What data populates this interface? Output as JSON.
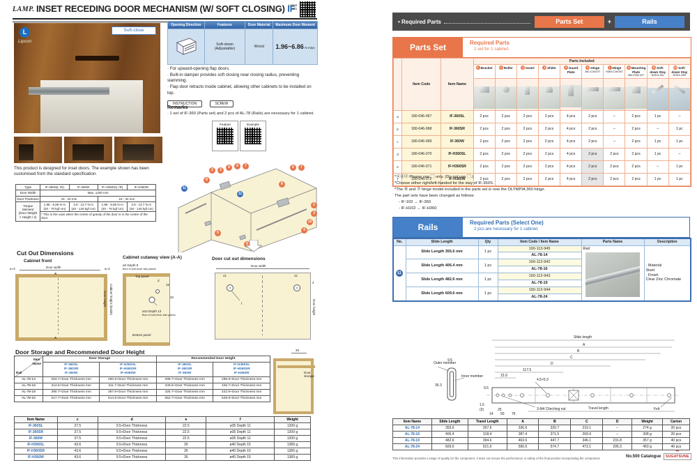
{
  "header": {
    "brand": "LAMP.",
    "title": "INSET RECEDING DOOR MECHANISM (W/ SOFT CLOSING)",
    "model": "IF",
    "latest1": "Latest",
    "latest2": "Info"
  },
  "photo": {
    "logo_letter": "L",
    "logo": "Lipcon",
    "badge": "Soft-close"
  },
  "spec_table": {
    "headers": [
      "Opening Direction",
      "Features",
      "Door Material",
      "Maximum Door Moment"
    ],
    "feature": "Soft-down\n(Adjustable)",
    "material": "Wood",
    "moment": "1.96~6.86",
    "moment_unit": "N·m/pc"
  },
  "bullets": [
    "· For upward-opening flap doors.",
    "· Built-in damper provides soft closing near closing radius, preventing slamming.",
    "· Flap door retracts inside cabinet, allowing other cabinets to be installed on top."
  ],
  "instruction_btn": "INSTRUCTION",
  "screw_btn": "SCREW",
  "remarks_title": "Remarks",
  "remarks_text": "· 1 set of IF-360 (Parts set) and 2 pcs of AL-78 (Rails) are necessary for 1 cabinet.",
  "qr_feature": "Feature",
  "qr_example": "Example",
  "caption": "This product is designed for inset doors. The example shown has been customised from the standard specification.",
  "type_table": {
    "col_type": "Type",
    "cols": [
      "IF-360S(L /R)",
      "IF-360W",
      "IF-H360S(L /R)",
      "IF-H360W"
    ],
    "row_width": "Door Width",
    "width_value": "Max. 1200 mm",
    "row_thickness": "Door Thickness",
    "thickness_1": "15 - 20 mm",
    "thickness_2": "18 - 30 mm",
    "row_torque": "Torque\nMoment\n(Door Weight\n× Height / 2)",
    "torque": [
      "1.96 - 6.86 N·m\n(20 - 70 kgf·cm)",
      "3.9 - 13.7 N·m\n(40 - 140 kgf·cm)",
      "1.96 - 6.86 N·m\n(20 - 70 kgf·cm)",
      "3.9 - 13.7 N·m\n(40 - 140 kgf·cm)"
    ],
    "note": "* This is the case when the centre of gravity of the door is in the centre of the door."
  },
  "exploded": {
    "markers": [
      "2",
      "3",
      "9",
      "6",
      "7",
      "8",
      "11",
      "11",
      "6",
      "7",
      "8",
      "2",
      "3",
      "10",
      "4",
      "5",
      "5"
    ]
  },
  "cutout": {
    "title": "Cut Out Dimensions",
    "front_title": "Cabinet front",
    "front": {
      "width": "Door width",
      "a_left": "a=3",
      "a_right": "a=3",
      "A_top": "A",
      "A_bottom": "A",
      "height": "Door height",
      "cab_height": "Cabinet height (inside)"
    },
    "cutaway_title": "Cabinet cutaway view (A-A)",
    "cutaway": {
      "hole_top": "ø2 Depth 8",
      "bore_top": "Bore to both inner side panels",
      "top_panel": "Top panel",
      "bottom_panel": "Bottom panel",
      "d": "d",
      "dim15": "15",
      "dim20": "20",
      "hole_bottom": "ø10 Depth 13",
      "bore_bottom": "Bore to both inner side panels"
    },
    "door_title": "Door cut out dimensions",
    "door": {
      "width": "Door width",
      "d41_left": "41",
      "d41_right": "41",
      "d4": "4",
      "f": "f",
      "height": "Door height"
    }
  },
  "storage": {
    "title": "Door Storage and Recommended Door Height",
    "corner_top": "Item\nName",
    "corner_bottom": "Rail",
    "groups": [
      "Door Storage",
      "Recommended Door Height"
    ],
    "subcols": [
      "IF-360SL\nIF-360SR\nIF-360W",
      "IF-H360SL\nIF-H360SR\nIF-H360W",
      "IF-360SL\nIF-360SR\nIF-360W",
      "IF-H360SL\nIF-H360SR\nIF-H360W"
    ],
    "rows": [
      [
        "AL-78-14",
        "263.7+Door Thickness mm",
        "260.9+Door Thickness mm",
        "298.7+Door Thickness mm",
        "295.9+Door Thickness mm"
      ],
      [
        "AL-78-16",
        "314.5+Door Thickness mm",
        "311.7+Door Thickness mm",
        "349.5+Door Thickness mm",
        "346.7+Door Thickness mm"
      ],
      [
        "AL-78-19",
        "390.7+Door Thickness mm",
        "387.9+Door Thickness mm",
        "425.7+Door Thickness mm",
        "422.9+Door Thickness mm"
      ],
      [
        "AL-78-24",
        "517.7+Door Thickness mm",
        "514.9+Door Thickness mm",
        "552.7+Door Thickness mm",
        "549.9+Door Thickness mm"
      ]
    ],
    "diagram_dim": "35",
    "diagram_label": "Door storage"
  },
  "dims_table": {
    "rows": [
      [
        "Item Name",
        "c",
        "d",
        "e",
        "f",
        "Weight"
      ],
      [
        "IF-360SL",
        "37.5",
        "9.5+Door Thickness",
        "22.5",
        "ø35 Depth 11",
        "1200 g"
      ],
      [
        "IF-360SR",
        "37.5",
        "9.5+Door Thickness",
        "22.5",
        "ø35 Depth 11",
        "1200 g"
      ],
      [
        "IF-360W",
        "37.5",
        "9.5+Door Thickness",
        "22.5",
        "ø35 Depth 11",
        "1200 g"
      ],
      [
        "IF-H360SL",
        "43.6",
        "9.5+Door Thickness",
        "26",
        "ø40 Depth 15",
        "1365 g"
      ],
      [
        "IF-H360SR",
        "43.6",
        "9.5+Door Thickness",
        "26",
        "ø40 Depth 15",
        "1365 g"
      ],
      [
        "IF-H360W",
        "43.6",
        "9.5+Door Thickness",
        "26",
        "ø40 Depth 15",
        "1365 g"
      ]
    ]
  },
  "required_bar": {
    "label": "• Required Parts",
    "parts_btn": "Parts Set",
    "plus": "+",
    "rails_btn": "Rails"
  },
  "parts_set": {
    "tab": "Parts Set",
    "heading": "Required Parts",
    "sub": "1 set for 1 cabinet.",
    "col_item_code": "Item Code",
    "col_item_name": "Item Name",
    "col_parts_included": "Parts Included",
    "cols": [
      {
        "n": "1",
        "name": "Bracket",
        "sub": ""
      },
      {
        "n": "2",
        "name": "Roller",
        "sub": ""
      },
      {
        "n": "3",
        "name": "Insert",
        "sub": ""
      },
      {
        "n": "4",
        "name": "Slider",
        "sub": ""
      },
      {
        "n": "5",
        "name": "Guard Plate",
        "sub": ""
      },
      {
        "n": "6",
        "name": "Hinge",
        "sub": "360-C26/19T"
      },
      {
        "n": "7",
        "name": "Hinge",
        "sub": "H360-C26/26T"
      },
      {
        "n": "8",
        "name": "Mounting Plate",
        "sub": "360-P4W-32T"
      },
      {
        "n": "9",
        "name": "Soft-down Stay",
        "sub": "NSDX-35L"
      },
      {
        "n": "10",
        "name": "Soft-down Stay",
        "sub": "NSDX-35R"
      }
    ],
    "rows": [
      [
        "a",
        "180-046-067",
        "IF-360SL",
        "2 pcs",
        "2 pcs",
        "2 pcs",
        "2 pcs",
        "4 pcs",
        "2 pcs",
        "–",
        "2 pcs",
        "1 pc",
        "–"
      ],
      [
        "b",
        "180-046-068",
        "IF-360SR",
        "2 pcs",
        "2 pcs",
        "2 pcs",
        "2 pcs",
        "4 pcs",
        "2 pcs",
        "–",
        "2 pcs",
        "–",
        "1 pc"
      ],
      [
        "c",
        "180-046-069",
        "IF-360W",
        "2 pcs",
        "2 pcs",
        "2 pcs",
        "2 pcs",
        "4 pcs",
        "2 pcs",
        "–",
        "2 pcs",
        "1 pc",
        "1 pc"
      ],
      [
        "d",
        "180-046-070",
        "IF-H360SL",
        "2 pcs",
        "2 pcs",
        "2 pcs",
        "2 pcs",
        "4 pcs",
        "2 pcs",
        "2 pcs",
        "2 pcs",
        "1 pc",
        "–"
      ],
      [
        "e",
        "180-046-071",
        "IF-H360SR",
        "2 pcs",
        "2 pcs",
        "2 pcs",
        "2 pcs",
        "4 pcs",
        "2 pcs",
        "2 pcs",
        "2 pcs",
        "–",
        "1 pc"
      ],
      [
        "f",
        "180-046-072",
        "IF-H360W",
        "2 pcs",
        "2 pcs",
        "2 pcs",
        "2 pcs",
        "4 pcs",
        "2 pcs",
        "2 pcs",
        "2 pcs",
        "1 pc",
        "1 pc"
      ]
    ],
    "notes": [
      "*ⓐⓓⓔ Please use ▢ only. (Do not use ▢.)",
      "*Choose either right/left-handed for the stay of IF-360S.",
      "*The ⑥ and ⑦ hinge model included in the parts set is now the OLYMPIA 360 hinge.",
      "The part sets have been changed as follows:",
      "- IF-102 → IF-360",
      "- IF-H102 → IF-H360"
    ]
  },
  "rails": {
    "tab": "Rails",
    "heading": "Required Parts (Select One)",
    "sub": "2 pcs are necessary for 1 cabinet.",
    "headers": [
      "No.",
      "Slide Length",
      "Qty",
      "Item Code / Item Name",
      "Parts Name",
      "Description"
    ],
    "marker": "11",
    "parts_name": "Rail",
    "rows": [
      {
        "len": "Slide Length 355.6 mm",
        "qty": "1 pc",
        "code": "190-113-945",
        "name": "AL-78-14"
      },
      {
        "len": "Slide Length 406.4 mm",
        "qty": "1 pc",
        "code": "190-113-942",
        "name": "AL-78-16"
      },
      {
        "len": "Slide Length 482.6 mm",
        "qty": "1 pc",
        "code": "190-113-943",
        "name": "AL-78-19"
      },
      {
        "len": "Slide Length 609.6 mm",
        "qty": "1 pc",
        "code": "190-113-944",
        "name": "AL-78-24"
      }
    ],
    "description": "· Material\nSteel\n· Finish\nClear Zinc Chromate"
  },
  "drawing": {
    "outer": "Outer member",
    "inner": "Inner member",
    "d95a": "9.5",
    "d353": "35.3",
    "d95b": "9.5",
    "slide": "Slide length",
    "A": "A",
    "B": "B",
    "C": "C",
    "D": "D",
    "d1175": "117.5",
    "d159": "15.9",
    "hole": "4.5×5.3",
    "d16": "1.6",
    "d3": "(3)",
    "d25": "25",
    "d14": "14",
    "d50": "50",
    "d76": "76",
    "nut": "3-M4 Clinching nut",
    "felt": "Felt",
    "travel": "Travel length"
  },
  "slide_table": {
    "rows": [
      [
        "Item Name",
        "Slide Length",
        "Travel Length",
        "A",
        "B",
        "C",
        "D",
        "Weight",
        "Carton"
      ],
      [
        "AL-78-14",
        "355.6",
        "267.6",
        "336.6",
        "320.7",
        "219.1",
        "–",
        "274 g",
        "20 pcs"
      ],
      [
        "AL-78-16",
        "406.4",
        "318.4",
        "387.4",
        "371.5",
        "269.9",
        "–",
        "308 g",
        "20 pcs"
      ],
      [
        "AL-78-19",
        "482.6",
        "394.6",
        "463.6",
        "447.7",
        "346.1",
        "231.8",
        "357 g",
        "40 pcs"
      ],
      [
        "AL-78-24",
        "609.6",
        "521.6",
        "590.6",
        "574.7",
        "473.1",
        "295.3",
        "450 g",
        "40 pcs"
      ]
    ]
  },
  "footer": {
    "disclaimer": "This information provides a range of quality for the component. It does not ensure the performance or safety of the final product incorporating the component.",
    "catalogue": "No.500 Catalogue",
    "brand": "SUGATSUNE",
    "brand_dots": "••"
  }
}
